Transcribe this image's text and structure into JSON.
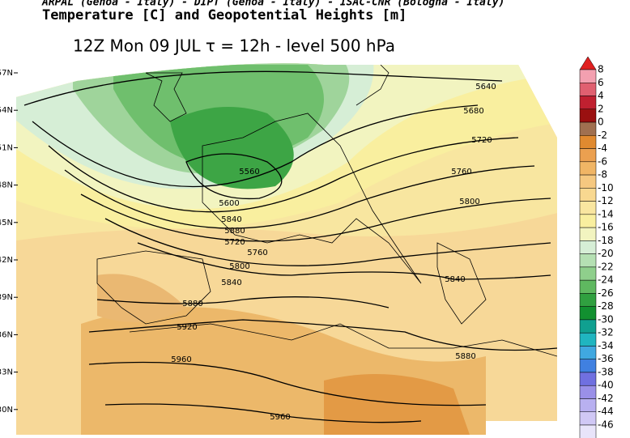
{
  "header": {
    "institutions": "ARPAL (Genoa - Italy)  -  DIPT (Genoa - Italy)  -  ISAC-CNR (Bologna - Italy)",
    "field": "Temperature [C] and Geopotential Heights [m]",
    "run": "12Z Mon 09 JUL  τ = 12h  -  level 500 hPa"
  },
  "map": {
    "latitude_labels": [
      "57N",
      "54N",
      "51N",
      "48N",
      "45N",
      "42N",
      "39N",
      "36N",
      "33N",
      "30N"
    ],
    "contour_labels": [
      5640,
      5680,
      5720,
      5760,
      5800,
      5840,
      5880,
      5560,
      5600,
      5840,
      5880,
      5720,
      5760,
      5800,
      5840,
      5880,
      5920,
      5960,
      5960
    ]
  },
  "colorbar": {
    "levels": [
      8,
      6,
      4,
      2,
      0,
      -2,
      -4,
      -6,
      -8,
      -10,
      -12,
      -14,
      -16,
      -18,
      -20,
      -22,
      -24,
      -26,
      -28,
      -30,
      -32,
      -34,
      -36,
      -38,
      -40,
      -42,
      -44,
      -46
    ],
    "colors": [
      "#f3a0b0",
      "#e06070",
      "#c02030",
      "#9a1010",
      "#a07050",
      "#e08a30",
      "#eba050",
      "#f0b565",
      "#f5c880",
      "#f8d890",
      "#f9e6a0",
      "#f9ef9f",
      "#f2f4c0",
      "#d6eed6",
      "#b5e0b3",
      "#8fcf8c",
      "#5fb860",
      "#30a040",
      "#129030",
      "#10a090",
      "#20b5c0",
      "#40a8e0",
      "#4080e0",
      "#7070e0",
      "#9a90e8",
      "#b8b0f0",
      "#d0c8f5",
      "#e8e4fa"
    ],
    "arrow_color": "#e02020"
  }
}
